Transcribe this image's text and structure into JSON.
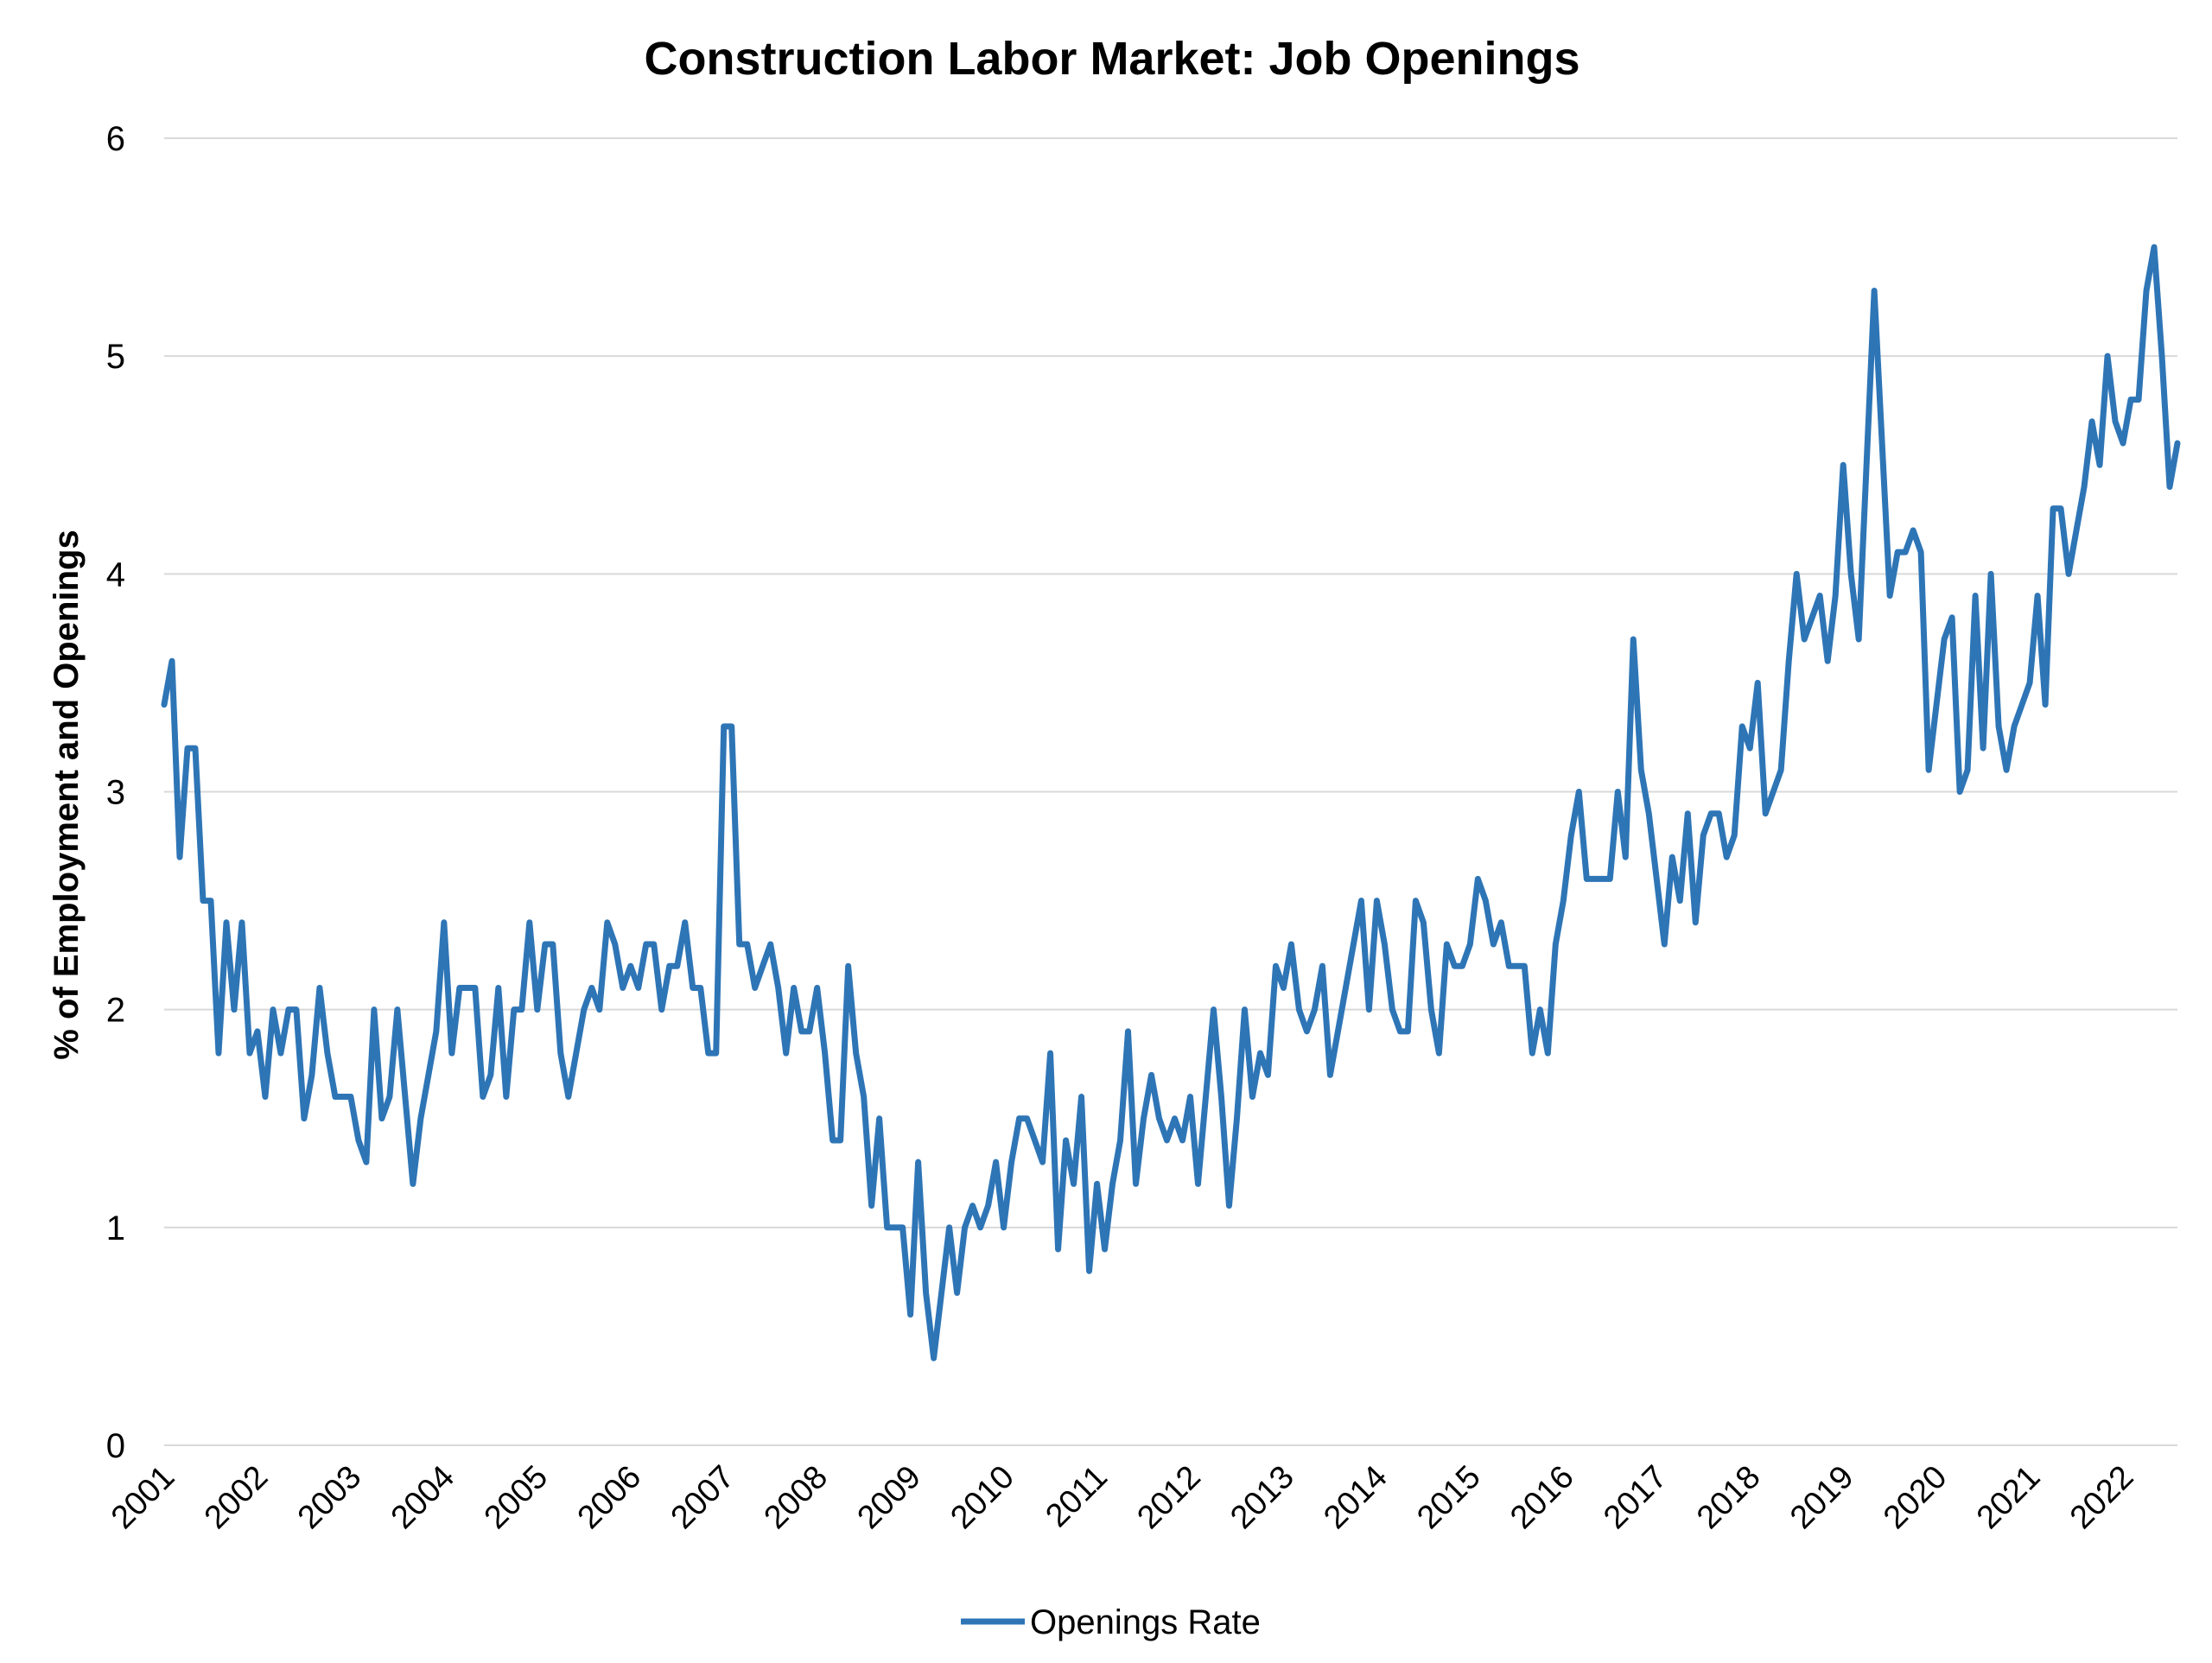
{
  "chart_data": {
    "type": "line",
    "title": "Construction Labor Market: Job Openings",
    "xlabel": "",
    "ylabel": "% of Employment and Openings",
    "ylim": [
      0,
      6
    ],
    "yticks": [
      "0",
      "1",
      "2",
      "3",
      "4",
      "5",
      "6"
    ],
    "year_labels": [
      "2001",
      "2002",
      "2003",
      "2004",
      "2005",
      "2006",
      "2007",
      "2008",
      "2009",
      "2010",
      "2011",
      "2012",
      "2013",
      "2014",
      "2015",
      "2016",
      "2017",
      "2018",
      "2019",
      "2020",
      "2021",
      "2022"
    ],
    "x_start": "2001-01",
    "frequency": "monthly",
    "grid": true,
    "legend_position": "bottom-center",
    "line_color": "#2E75B6",
    "series": [
      {
        "name": "Openings Rate",
        "values": [
          3.4,
          3.6,
          2.7,
          3.2,
          3.2,
          2.5,
          2.5,
          1.8,
          2.4,
          2.0,
          2.4,
          1.8,
          1.9,
          1.6,
          2.0,
          1.8,
          2.0,
          2.0,
          1.5,
          1.7,
          2.1,
          1.8,
          1.6,
          1.6,
          1.6,
          1.4,
          1.3,
          2.0,
          1.5,
          1.6,
          2.0,
          1.6,
          1.2,
          1.5,
          1.7,
          1.9,
          2.4,
          1.8,
          2.1,
          2.1,
          2.1,
          1.6,
          1.7,
          2.1,
          1.6,
          2.0,
          2.0,
          2.4,
          2.0,
          2.3,
          2.3,
          1.8,
          1.6,
          1.8,
          2.0,
          2.1,
          2.0,
          2.4,
          2.3,
          2.1,
          2.2,
          2.1,
          2.3,
          2.3,
          2.0,
          2.2,
          2.2,
          2.4,
          2.1,
          2.1,
          1.8,
          1.8,
          3.3,
          3.3,
          2.3,
          2.3,
          2.1,
          2.2,
          2.3,
          2.1,
          1.8,
          2.1,
          1.9,
          1.9,
          2.1,
          1.8,
          1.4,
          1.4,
          2.2,
          1.8,
          1.6,
          1.1,
          1.5,
          1.0,
          1.0,
          1.0,
          0.6,
          1.3,
          0.7,
          0.4,
          0.7,
          1.0,
          0.7,
          1.0,
          1.1,
          1.0,
          1.1,
          1.3,
          1.0,
          1.3,
          1.5,
          1.5,
          1.4,
          1.3,
          1.8,
          0.9,
          1.4,
          1.2,
          1.6,
          0.8,
          1.2,
          0.9,
          1.2,
          1.4,
          1.9,
          1.2,
          1.5,
          1.7,
          1.5,
          1.4,
          1.5,
          1.4,
          1.6,
          1.2,
          1.6,
          2.0,
          1.6,
          1.1,
          1.5,
          2.0,
          1.6,
          1.8,
          1.7,
          2.2,
          2.1,
          2.3,
          2.0,
          1.9,
          2.0,
          2.2,
          1.7,
          1.9,
          2.1,
          2.3,
          2.5,
          2.0,
          2.5,
          2.3,
          2.0,
          1.9,
          1.9,
          2.5,
          2.4,
          2.0,
          1.8,
          2.3,
          2.2,
          2.2,
          2.3,
          2.6,
          2.5,
          2.3,
          2.4,
          2.2,
          2.2,
          2.2,
          1.8,
          2.0,
          1.8,
          2.3,
          2.5,
          2.8,
          3.0,
          2.6,
          2.6,
          2.6,
          2.6,
          3.0,
          2.7,
          3.7,
          3.1,
          2.9,
          2.6,
          2.3,
          2.7,
          2.5,
          2.9,
          2.4,
          2.8,
          2.9,
          2.9,
          2.7,
          2.8,
          3.3,
          3.2,
          3.5,
          2.9,
          3.0,
          3.1,
          3.6,
          4.0,
          3.7,
          3.8,
          3.9,
          3.6,
          3.9,
          4.5,
          4.0,
          3.7,
          4.5,
          5.3,
          4.6,
          3.9,
          4.1,
          4.1,
          4.2,
          4.1,
          3.1,
          3.4,
          3.7,
          3.8,
          3.0,
          3.1,
          3.9,
          3.2,
          4.0,
          3.3,
          3.1,
          3.3,
          3.4,
          3.5,
          3.9,
          3.4,
          4.3,
          4.3,
          4.0,
          4.2,
          4.4,
          4.7,
          4.5,
          5.0,
          4.7,
          4.6,
          4.8,
          4.8,
          5.3,
          5.5,
          5.0,
          4.4,
          4.6
        ]
      }
    ]
  }
}
